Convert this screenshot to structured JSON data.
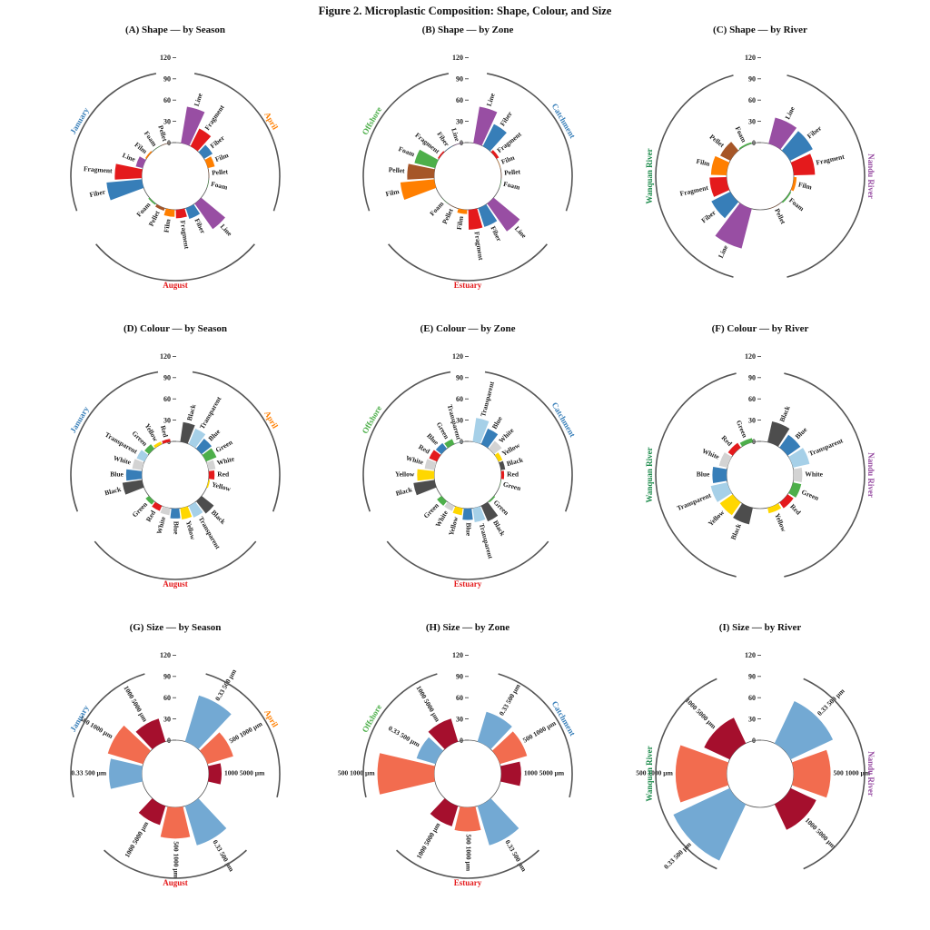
{
  "figure_title": "Figure 2. Microplastic Composition: Shape, Colour, and Size",
  "colors": {
    "Line": "#984ea3",
    "Fragment": "#e41a1c",
    "Fiber": "#377eb8",
    "Film": "#ff7f00",
    "Pellet": "#a65628",
    "Foam": "#4daf4a",
    "Black": "#4d4d4d",
    "Transparent": "#a6d0e8",
    "Blue": "#377eb8",
    "Green": "#4daf4a",
    "White": "#d3d3d3",
    "Red": "#e41a1c",
    "Yellow": "#ffd700",
    "0.33 500 µm": "#73a9d3",
    "500 1000 µm": "#f26c4f",
    "1000 5000 µm": "#a50f2d",
    "January": "#377eb8",
    "April": "#ff7f00",
    "August": "#e41a1c",
    "Catchment": "#377eb8",
    "Estuary": "#e41a1c",
    "Offshore": "#4daf4a",
    "Nandu River": "#984ea3",
    "Wanquan River": "#1b8a4a"
  },
  "chart_data": [
    {
      "type": "circular-bar",
      "title": "(A) Shape — by Season",
      "y_ticks": [
        "0",
        "30",
        "60",
        "90",
        "120"
      ],
      "ylim": [
        0,
        120
      ],
      "groups": [
        {
          "name": "April",
          "bars": [
            {
              "label": "Line",
              "value": 52
            },
            {
              "label": "Fragment",
              "value": 28
            },
            {
              "label": "Fiber",
              "value": 14
            },
            {
              "label": "Film",
              "value": 10
            },
            {
              "label": "Pellet",
              "value": 0
            },
            {
              "label": "Foam",
              "value": 0
            }
          ]
        },
        {
          "name": "August",
          "bars": [
            {
              "label": "Line",
              "value": 44
            },
            {
              "label": "Fiber",
              "value": 16
            },
            {
              "label": "Fragment",
              "value": 12
            },
            {
              "label": "Film",
              "value": 10
            },
            {
              "label": "Pellet",
              "value": 4
            },
            {
              "label": "Foam",
              "value": 2
            }
          ]
        },
        {
          "name": "January",
          "bars": [
            {
              "label": "Fiber",
              "value": 50
            },
            {
              "label": "Fragment",
              "value": 38
            },
            {
              "label": "Line",
              "value": 10
            },
            {
              "label": "Film",
              "value": 2
            },
            {
              "label": "Foam",
              "value": 0
            },
            {
              "label": "Pellet",
              "value": 0
            }
          ]
        }
      ]
    },
    {
      "type": "circular-bar",
      "title": "(B) Shape — by Zone",
      "y_ticks": [
        "0",
        "30",
        "60",
        "90",
        "120"
      ],
      "ylim": [
        0,
        120
      ],
      "groups": [
        {
          "name": "Catchment",
          "bars": [
            {
              "label": "Line",
              "value": 52
            },
            {
              "label": "Fiber",
              "value": 35
            },
            {
              "label": "Fragment",
              "value": 4
            },
            {
              "label": "Film",
              "value": 0
            },
            {
              "label": "Pellet",
              "value": 0
            },
            {
              "label": "Foam",
              "value": 0
            }
          ]
        },
        {
          "name": "Estuary",
          "bars": [
            {
              "label": "Line",
              "value": 48
            },
            {
              "label": "Fiber",
              "value": 28
            },
            {
              "label": "Fragment",
              "value": 28
            },
            {
              "label": "Film",
              "value": 6
            },
            {
              "label": "Pellet",
              "value": 0
            },
            {
              "label": "Foam",
              "value": 0
            }
          ]
        },
        {
          "name": "Offshore",
          "bars": [
            {
              "label": "Film",
              "value": 48
            },
            {
              "label": "Pellet",
              "value": 38
            },
            {
              "label": "Foam",
              "value": 30
            },
            {
              "label": "Fragment",
              "value": 2
            },
            {
              "label": "Fiber",
              "value": 0
            },
            {
              "label": "Line",
              "value": 0
            }
          ]
        }
      ]
    },
    {
      "type": "circular-bar",
      "title": "(C) Shape — by River",
      "y_ticks": [
        "0",
        "30",
        "60",
        "90",
        "120"
      ],
      "ylim": [
        0,
        120
      ],
      "groups": [
        {
          "name": "Nandu River",
          "bars": [
            {
              "label": "Line",
              "value": 38
            },
            {
              "label": "Fiber",
              "value": 36
            },
            {
              "label": "Fragment",
              "value": 30
            },
            {
              "label": "Film",
              "value": 4
            },
            {
              "label": "Foam",
              "value": 2
            },
            {
              "label": "Pellet",
              "value": 0
            }
          ]
        },
        {
          "name": "Wanquan River",
          "bars": [
            {
              "label": "Line",
              "value": 58
            },
            {
              "label": "Fiber",
              "value": 30
            },
            {
              "label": "Fragment",
              "value": 24
            },
            {
              "label": "Film",
              "value": 22
            },
            {
              "label": "Pellet",
              "value": 16
            },
            {
              "label": "Foam",
              "value": 2
            }
          ]
        }
      ]
    },
    {
      "type": "circular-bar",
      "title": "(D) Colour — by Season",
      "y_ticks": [
        "0",
        "30",
        "60",
        "90",
        "120"
      ],
      "ylim": [
        0,
        120
      ],
      "groups": [
        {
          "name": "April",
          "bars": [
            {
              "label": "Black",
              "value": 28
            },
            {
              "label": "Transparent",
              "value": 24
            },
            {
              "label": "Blue",
              "value": 18
            },
            {
              "label": "Green",
              "value": 16
            },
            {
              "label": "White",
              "value": 10
            },
            {
              "label": "Red",
              "value": 8
            },
            {
              "label": "Yellow",
              "value": 2
            }
          ]
        },
        {
          "name": "August",
          "bars": [
            {
              "label": "Black",
              "value": 22
            },
            {
              "label": "Transparent",
              "value": 18
            },
            {
              "label": "Yellow",
              "value": 16
            },
            {
              "label": "Blue",
              "value": 14
            },
            {
              "label": "White",
              "value": 10
            },
            {
              "label": "Red",
              "value": 8
            },
            {
              "label": "Green",
              "value": 6
            }
          ]
        },
        {
          "name": "January",
          "bars": [
            {
              "label": "Black",
              "value": 28
            },
            {
              "label": "Blue",
              "value": 22
            },
            {
              "label": "White",
              "value": 14
            },
            {
              "label": "Transparent",
              "value": 12
            },
            {
              "label": "Green",
              "value": 8
            },
            {
              "label": "Yellow",
              "value": 4
            },
            {
              "label": "Red",
              "value": 4
            }
          ]
        }
      ]
    },
    {
      "type": "circular-bar",
      "title": "(E) Colour — by Zone",
      "y_ticks": [
        "0",
        "30",
        "60",
        "90",
        "120"
      ],
      "ylim": [
        0,
        120
      ],
      "groups": [
        {
          "name": "Catchment",
          "bars": [
            {
              "label": "Transparent",
              "value": 34
            },
            {
              "label": "Blue",
              "value": 24
            },
            {
              "label": "White",
              "value": 14
            },
            {
              "label": "Yellow",
              "value": 6
            },
            {
              "label": "Black",
              "value": 6
            },
            {
              "label": "Red",
              "value": 4
            },
            {
              "label": "Green",
              "value": 0
            }
          ]
        },
        {
          "name": "Estuary",
          "bars": [
            {
              "label": "Green",
              "value": 2
            },
            {
              "label": "Black",
              "value": 24
            },
            {
              "label": "Transparent",
              "value": 20
            },
            {
              "label": "Blue",
              "value": 16
            },
            {
              "label": "Yellow",
              "value": 10
            },
            {
              "label": "White",
              "value": 8
            },
            {
              "label": "Green",
              "value": 8
            }
          ]
        },
        {
          "name": "Offshore",
          "bars": [
            {
              "label": "Black",
              "value": 30
            },
            {
              "label": "Yellow",
              "value": 24
            },
            {
              "label": "White",
              "value": 14
            },
            {
              "label": "Red",
              "value": 12
            },
            {
              "label": "Blue",
              "value": 10
            },
            {
              "label": "Green",
              "value": 8
            },
            {
              "label": "Transparent",
              "value": 0
            }
          ]
        }
      ]
    },
    {
      "type": "circular-bar",
      "title": "(F) Colour — by River",
      "y_ticks": [
        "0",
        "30",
        "60",
        "90",
        "120"
      ],
      "ylim": [
        0,
        120
      ],
      "groups": [
        {
          "name": "Nandu River",
          "bars": [
            {
              "label": "Black",
              "value": 30
            },
            {
              "label": "Blue",
              "value": 22
            },
            {
              "label": "Transparent",
              "value": 24
            },
            {
              "label": "White",
              "value": 12
            },
            {
              "label": "Green",
              "value": 12
            },
            {
              "label": "Red",
              "value": 10
            },
            {
              "label": "Yellow",
              "value": 8
            }
          ]
        },
        {
          "name": "Wanquan River",
          "bars": [
            {
              "label": "Black",
              "value": 24
            },
            {
              "label": "Yellow",
              "value": 22
            },
            {
              "label": "Transparent",
              "value": 24
            },
            {
              "label": "Blue",
              "value": 20
            },
            {
              "label": "White",
              "value": 12
            },
            {
              "label": "Red",
              "value": 8
            },
            {
              "label": "Green",
              "value": 6
            }
          ]
        }
      ]
    },
    {
      "type": "circular-bar",
      "title": "(G) Size — by Season",
      "y_ticks": [
        "0",
        "30",
        "60",
        "90",
        "120"
      ],
      "ylim": [
        0,
        120
      ],
      "groups": [
        {
          "name": "April",
          "bars": [
            {
              "label": "0.33 500 µm",
              "value": 68
            },
            {
              "label": "500 1000 µm",
              "value": 38
            },
            {
              "label": "1000 5000 µm",
              "value": 18
            }
          ]
        },
        {
          "name": "August",
          "bars": [
            {
              "label": "0.33 500 µm",
              "value": 58
            },
            {
              "label": "500 1000 µm",
              "value": 44
            },
            {
              "label": "1000 5000 µm",
              "value": 28
            }
          ]
        },
        {
          "name": "January",
          "bars": [
            {
              "label": "0.33 500 µm",
              "value": 46
            },
            {
              "label": "500 1000 µm",
              "value": 52
            },
            {
              "label": "1000 5000 µm",
              "value": 34
            }
          ]
        }
      ]
    },
    {
      "type": "circular-bar",
      "title": "(H) Size — by Zone",
      "y_ticks": [
        "0",
        "30",
        "60",
        "90",
        "120"
      ],
      "ylim": [
        0,
        120
      ],
      "groups": [
        {
          "name": "Catchment",
          "bars": [
            {
              "label": "0.33 500 µm",
              "value": 44
            },
            {
              "label": "500 1000 µm",
              "value": 40
            },
            {
              "label": "1000 5000 µm",
              "value": 28
            }
          ]
        },
        {
          "name": "Estuary",
          "bars": [
            {
              "label": "0.33 500 µm",
              "value": 58
            },
            {
              "label": "500 1000 µm",
              "value": 34
            },
            {
              "label": "1000 5000 µm",
              "value": 30
            }
          ]
        },
        {
          "name": "Offshore",
          "bars": [
            {
              "label": "500 1000 µm",
              "value": 80
            },
            {
              "label": "0.33 500 µm",
              "value": 28
            },
            {
              "label": "1000 5000 µm",
              "value": 34
            }
          ]
        }
      ]
    },
    {
      "type": "circular-bar",
      "title": "(I) Size — by River",
      "y_ticks": [
        "0",
        "30",
        "60",
        "90",
        "120"
      ],
      "ylim": [
        0,
        120
      ],
      "groups": [
        {
          "name": "Nandu River",
          "bars": [
            {
              "label": "0.33 500 µm",
              "value": 66
            },
            {
              "label": "500 1000 µm",
              "value": 52
            },
            {
              "label": "1000 5000 µm",
              "value": 40
            }
          ]
        },
        {
          "name": "Wanquan River",
          "bars": [
            {
              "label": "0.33 500 µm",
              "value": 88
            },
            {
              "label": "500 1000 µm",
              "value": 72
            },
            {
              "label": "1000 5000 µm",
              "value": 40
            }
          ]
        }
      ]
    }
  ]
}
